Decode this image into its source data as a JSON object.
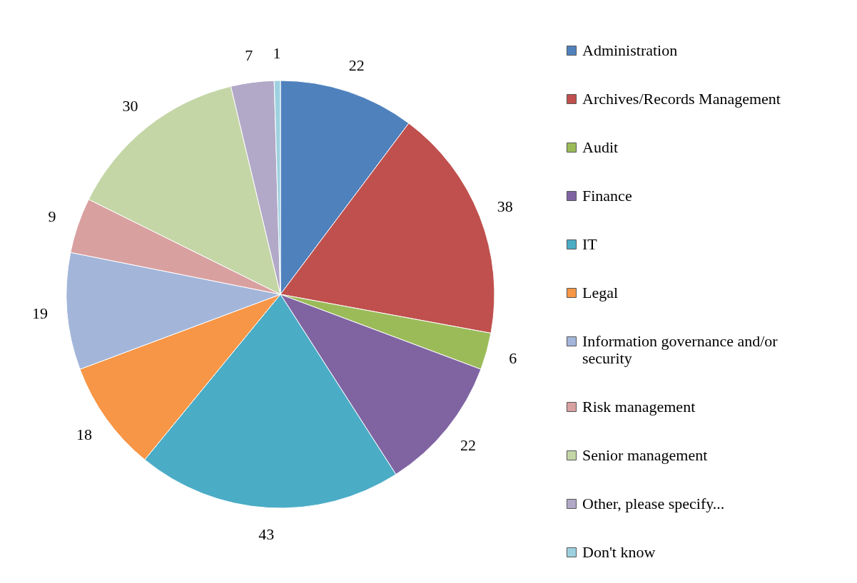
{
  "chart_data": {
    "type": "pie",
    "categories": [
      "Administration",
      "Archives/Records Management",
      "Audit",
      "Finance",
      "IT",
      "Legal",
      "Information governance and/or security",
      "Risk management",
      "Senior management",
      "Other, please specify...",
      "Don't know"
    ],
    "values": [
      22,
      38,
      6,
      22,
      43,
      18,
      19,
      9,
      30,
      7,
      1
    ],
    "colors": [
      "#4f81bd",
      "#c0504d",
      "#9bbb59",
      "#8064a2",
      "#4bacc6",
      "#f79646",
      "#a3b6da",
      "#d9a0a0",
      "#c4d6a6",
      "#b2a9c8",
      "#9ed1e0"
    ],
    "data_labels": true,
    "legend": "right"
  }
}
